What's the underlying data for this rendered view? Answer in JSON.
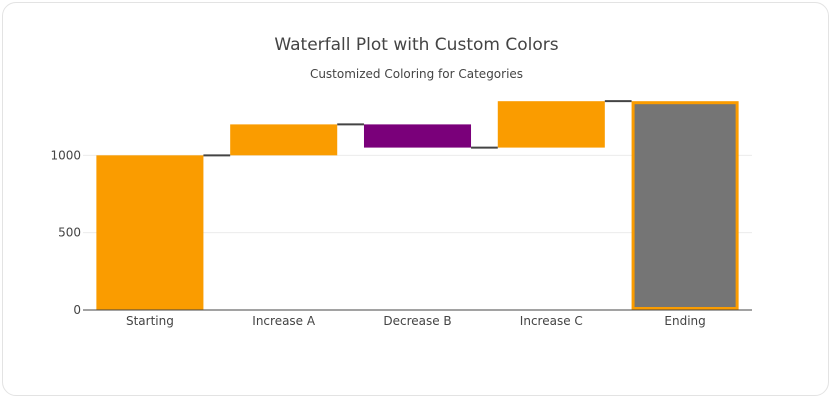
{
  "chart_data": {
    "type": "waterfall",
    "title": "Waterfall Plot with Custom Colors",
    "subtitle": "Customized Coloring for Categories",
    "categories": [
      "Starting",
      "Increase A",
      "Decrease B",
      "Increase C",
      "Ending"
    ],
    "measures": [
      "absolute",
      "relative",
      "relative",
      "relative",
      "total"
    ],
    "values": [
      1000,
      200,
      -150,
      300,
      1350
    ],
    "ylim": [
      0,
      1390
    ],
    "yticks": [
      0,
      500,
      1000
    ],
    "grid": true,
    "colors": {
      "increasing": "#fa9c00",
      "decreasing": "#7a007a",
      "total": "#757575",
      "total_border": "#fa9c00",
      "connector": "#444444"
    }
  }
}
